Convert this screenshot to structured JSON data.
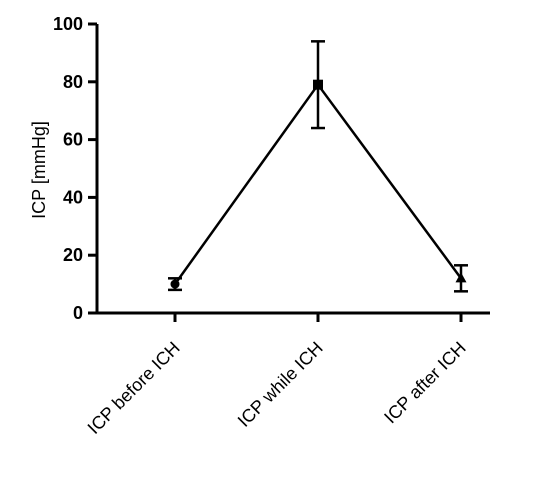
{
  "chart_data": {
    "type": "line",
    "title": "",
    "xlabel": "",
    "ylabel": "ICP [mmHg]",
    "ylim": [
      0,
      100
    ],
    "yticks": [
      0,
      20,
      40,
      60,
      80,
      100
    ],
    "grid": false,
    "categories": [
      "ICP before ICH",
      "ICP while ICH",
      "ICP after ICH"
    ],
    "series": [
      {
        "values": [
          10,
          79,
          12
        ],
        "error": [
          2,
          15,
          4.5
        ],
        "markers": [
          "circle",
          "square",
          "triangle"
        ]
      }
    ]
  }
}
